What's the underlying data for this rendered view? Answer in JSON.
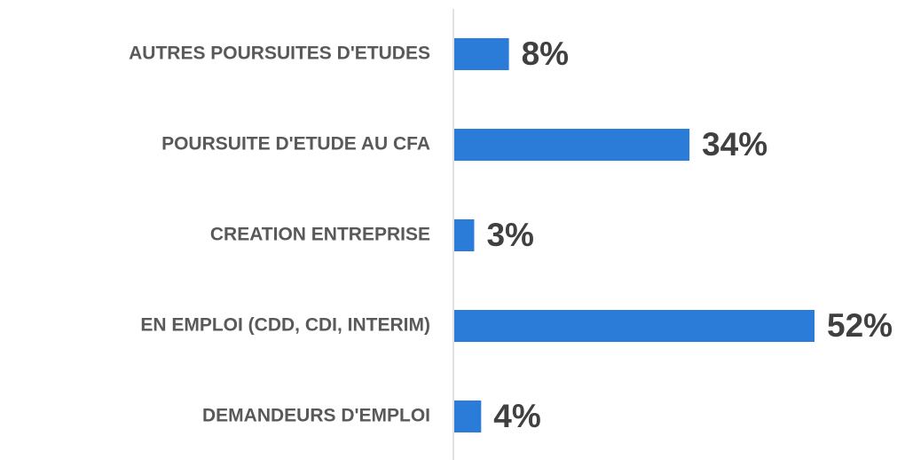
{
  "chart_data": {
    "type": "hbar",
    "categories": [
      "AUTRES POURSUITES D'ETUDES",
      "POURSUITE D'ETUDE AU CFA",
      "CREATION ENTREPRISE",
      "EN EMPLOI (CDD, CDI, INTERIM)",
      "DEMANDEURS D'EMPLOI"
    ],
    "values": [
      8,
      34,
      3,
      52,
      4
    ],
    "value_labels": [
      "8%",
      "34%",
      "3%",
      "52%",
      "4%"
    ],
    "color": "#2b7cd9"
  }
}
